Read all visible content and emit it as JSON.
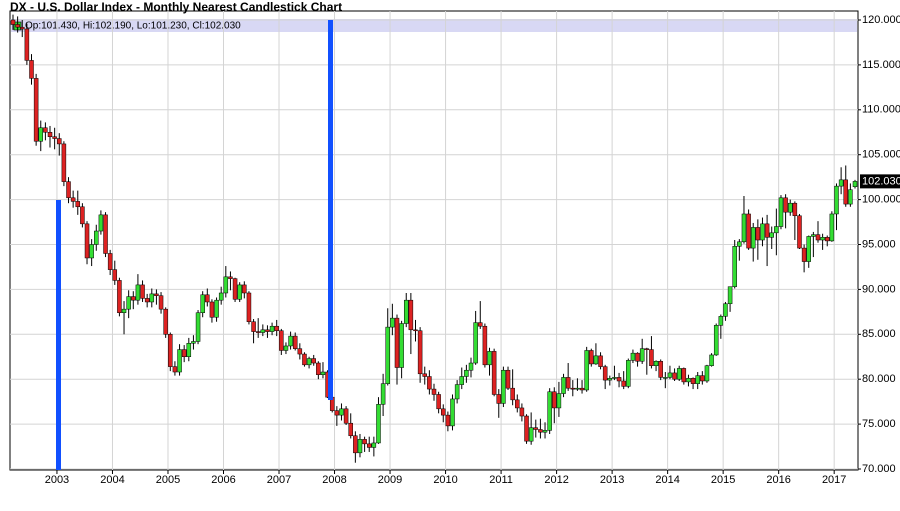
{
  "chart_data": {
    "type": "candlestick",
    "title": "DX - U.S. Dollar Index - Monthly Nearest Candlestick Chart",
    "info": "Op:101.430, Hi:102.190, Lo:101.230, Cl:102.030",
    "last_price_label": "102.030",
    "up_color": "#33dd33",
    "down_color": "#dd2222",
    "grid": true,
    "categories": [
      null,
      null,
      null,
      null,
      null,
      null,
      null,
      null,
      null,
      null,
      null,
      null,
      "2003",
      null,
      null,
      null,
      null,
      null,
      null,
      null,
      null,
      null,
      null,
      null,
      "2004",
      null,
      null,
      null,
      null,
      null,
      null,
      null,
      null,
      null,
      null,
      null,
      "2005",
      null,
      null,
      null,
      null,
      null,
      null,
      null,
      null,
      null,
      null,
      null,
      "2006",
      null,
      null,
      null,
      null,
      null,
      null,
      null,
      null,
      null,
      null,
      null,
      "2007",
      null,
      null,
      null,
      null,
      null,
      null,
      null,
      null,
      null,
      null,
      null,
      "2008",
      null,
      null,
      null,
      null,
      null,
      null,
      null,
      null,
      null,
      null,
      null,
      "2009",
      null,
      null,
      null,
      null,
      null,
      null,
      null,
      null,
      null,
      null,
      null,
      "2010",
      null,
      null,
      null,
      null,
      null,
      null,
      null,
      null,
      null,
      null,
      null,
      "2011",
      null,
      null,
      null,
      null,
      null,
      null,
      null,
      null,
      null,
      null,
      null,
      "2012",
      null,
      null,
      null,
      null,
      null,
      null,
      null,
      null,
      null,
      null,
      null,
      "2013",
      null,
      null,
      null,
      null,
      null,
      null,
      null,
      null,
      null,
      null,
      null,
      "2014",
      null,
      null,
      null,
      null,
      null,
      null,
      null,
      null,
      null,
      null,
      null,
      "2015",
      null,
      null,
      null,
      null,
      null,
      null,
      null,
      null,
      null,
      null,
      null,
      "2016",
      null,
      null,
      null,
      null,
      null,
      null,
      null,
      null,
      null,
      null,
      null,
      "2017",
      null,
      null
    ],
    "open": [
      120.0,
      119.5,
      119.2,
      119.0,
      115.5,
      113.5,
      106.5,
      108.0,
      107.5,
      107.0,
      106.8,
      106.2,
      102.0,
      100.2,
      99.8,
      99.2,
      97.3,
      93.5,
      95.0,
      96.5,
      98.3,
      94.0,
      92.2,
      91.0,
      87.4,
      87.8,
      89.2,
      88.8,
      90.5,
      89.0,
      88.6,
      89.5,
      89.3,
      87.8,
      85.0,
      81.4,
      80.8,
      83.3,
      82.5,
      84.0,
      84.2,
      87.4,
      89.4,
      88.6,
      86.9,
      88.8,
      89.6,
      91.4,
      91.2,
      88.9,
      90.5,
      89.6,
      86.4,
      85.3,
      85.2,
      85.5,
      85.3,
      85.9,
      85.4,
      83.2,
      83.7,
      84.8,
      83.4,
      82.8,
      81.6,
      82.3,
      81.8,
      80.5,
      80.8,
      78.0,
      76.5,
      76.0,
      76.7,
      75.1,
      73.7,
      71.8,
      73.3,
      72.8,
      72.4,
      72.9,
      77.2,
      79.5,
      85.8,
      86.8,
      81.3,
      86.2,
      88.8,
      85.5,
      85.4,
      80.6,
      80.3,
      78.9,
      78.3,
      76.7,
      76.0,
      74.8,
      77.8,
      79.4,
      80.3,
      81.0,
      81.8,
      86.3,
      85.9,
      81.6,
      83.1,
      78.3,
      77.3,
      81.0,
      79.0,
      77.7,
      76.8,
      75.9,
      73.1,
      74.6,
      74.4,
      74.1,
      74.3,
      78.6,
      76.8,
      78.4,
      80.2,
      79.0,
      78.9,
      79.0,
      78.8,
      83.2,
      81.7,
      82.6,
      81.4,
      79.9,
      80.1,
      80.2,
      79.8,
      79.2,
      82.1,
      82.9,
      82.0,
      83.4,
      83.3,
      81.5,
      82.0,
      80.2,
      80.2,
      80.7,
      80.0,
      81.2,
      79.7,
      80.1,
      79.5,
      80.4,
      79.8,
      81.5,
      82.7,
      86.0,
      87.0,
      88.4,
      90.3,
      94.8,
      95.3,
      98.4,
      94.6,
      96.9,
      95.5,
      97.3,
      95.8,
      96.3,
      97.0,
      100.2,
      98.6,
      99.6,
      98.2,
      94.6,
      93.1,
      95.9,
      96.1,
      95.5,
      95.8,
      95.4,
      98.4,
      101.5,
      102.2,
      99.5,
      101.43
    ],
    "high": [
      120.6,
      120.4,
      120.0,
      119.6,
      116.2,
      114.0,
      108.8,
      108.6,
      108.2,
      108.0,
      107.4,
      106.5,
      102.5,
      101.0,
      101.0,
      99.6,
      97.6,
      95.6,
      97.2,
      98.8,
      98.6,
      94.4,
      93.2,
      91.3,
      88.7,
      89.9,
      89.8,
      91.7,
      91.0,
      89.5,
      90.1,
      90.0,
      89.7,
      88.0,
      85.2,
      82.0,
      83.9,
      83.8,
      84.6,
      84.9,
      87.7,
      89.8,
      90.1,
      88.9,
      89.1,
      90.3,
      92.6,
      92.0,
      91.3,
      90.8,
      90.9,
      89.8,
      86.7,
      86.8,
      86.1,
      86.0,
      86.3,
      86.6,
      85.6,
      84.1,
      85.3,
      85.2,
      84.0,
      83.0,
      82.5,
      82.7,
      82.0,
      81.9,
      81.0,
      78.2,
      77.0,
      77.3,
      77.0,
      76.2,
      74.2,
      73.9,
      73.6,
      73.6,
      73.6,
      78.0,
      80.6,
      87.9,
      88.4,
      87.2,
      86.5,
      89.6,
      89.6,
      86.6,
      85.8,
      81.4,
      81.0,
      79.5,
      78.6,
      77.2,
      76.4,
      78.3,
      79.9,
      81.3,
      81.6,
      82.4,
      87.6,
      88.7,
      86.2,
      83.5,
      83.4,
      78.9,
      81.4,
      81.4,
      81.1,
      78.3,
      77.3,
      76.1,
      76.3,
      75.5,
      75.6,
      75.2,
      79.0,
      79.1,
      79.7,
      80.6,
      81.8,
      79.9,
      80.1,
      79.9,
      83.6,
      83.4,
      84.0,
      83.0,
      81.6,
      80.4,
      81.5,
      80.7,
      80.9,
      82.3,
      83.3,
      83.0,
      84.5,
      83.5,
      84.8,
      82.1,
      82.2,
      80.8,
      81.5,
      81.2,
      81.5,
      81.3,
      80.5,
      80.2,
      80.8,
      80.9,
      81.6,
      82.9,
      86.2,
      87.2,
      88.6,
      90.3,
      95.5,
      95.6,
      100.4,
      98.9,
      97.4,
      97.8,
      98.0,
      98.3,
      97.0,
      99.0,
      100.5,
      100.6,
      100.0,
      99.8,
      98.4,
      95.0,
      96.0,
      96.4,
      97.6,
      96.2,
      96.0,
      98.7,
      101.8,
      103.6,
      103.8,
      101.8,
      102.19
    ],
    "low": [
      118.9,
      118.6,
      118.1,
      115.0,
      112.8,
      106.0,
      105.4,
      106.6,
      105.8,
      105.6,
      104.9,
      101.5,
      99.6,
      99.1,
      98.3,
      96.9,
      92.8,
      92.6,
      94.3,
      96.1,
      93.6,
      91.6,
      90.5,
      87.0,
      85.0,
      86.8,
      87.8,
      88.3,
      88.6,
      88.0,
      88.0,
      88.3,
      87.3,
      84.6,
      80.9,
      80.4,
      80.4,
      81.9,
      82.0,
      83.3,
      83.9,
      86.9,
      88.1,
      86.3,
      86.4,
      88.3,
      89.1,
      89.9,
      88.6,
      88.6,
      89.0,
      86.1,
      84.0,
      84.6,
      84.8,
      84.6,
      84.9,
      84.8,
      82.7,
      82.8,
      83.3,
      83.2,
      82.2,
      81.4,
      81.2,
      81.5,
      80.0,
      80.1,
      77.9,
      76.3,
      74.8,
      75.4,
      74.9,
      73.4,
      70.7,
      71.3,
      71.9,
      71.9,
      71.4,
      72.8,
      75.9,
      79.3,
      84.9,
      79.4,
      80.1,
      85.8,
      82.8,
      84.2,
      79.6,
      79.4,
      78.3,
      77.6,
      76.2,
      75.2,
      74.2,
      74.3,
      77.3,
      78.9,
      79.6,
      80.2,
      81.6,
      85.6,
      81.3,
      80.4,
      78.1,
      75.7,
      76.9,
      78.8,
      77.1,
      76.3,
      75.3,
      72.8,
      72.7,
      73.5,
      73.4,
      73.4,
      73.9,
      75.1,
      75.8,
      78.0,
      78.7,
      78.1,
      78.7,
      78.4,
      78.6,
      81.4,
      81.6,
      81.1,
      78.9,
      79.3,
      79.9,
      79.1,
      78.9,
      79.0,
      81.8,
      81.4,
      81.7,
      80.5,
      81.2,
      80.9,
      79.9,
      79.0,
      80.0,
      79.8,
      79.8,
      79.4,
      79.2,
      78.9,
      78.9,
      79.4,
      79.6,
      81.4,
      82.6,
      84.5,
      86.5,
      87.5,
      90.1,
      93.2,
      95.1,
      94.4,
      93.1,
      93.3,
      94.8,
      92.6,
      94.5,
      93.8,
      96.7,
      96.8,
      98.2,
      95.5,
      94.5,
      91.9,
      92.4,
      93.6,
      95.2,
      94.4,
      94.8,
      95.3,
      96.6,
      100.6,
      99.2,
      99.2,
      101.23
    ],
    "close": [
      119.5,
      119.2,
      119.0,
      115.5,
      113.5,
      106.5,
      108.0,
      107.5,
      107.0,
      106.8,
      106.2,
      102.0,
      100.2,
      99.8,
      99.2,
      97.3,
      93.5,
      95.0,
      96.5,
      98.3,
      94.0,
      92.2,
      91.0,
      87.4,
      87.8,
      89.2,
      88.8,
      90.5,
      89.0,
      88.6,
      89.5,
      89.3,
      87.8,
      85.0,
      81.4,
      80.8,
      83.3,
      82.5,
      84.0,
      84.2,
      87.4,
      89.4,
      88.6,
      86.9,
      88.8,
      89.6,
      91.4,
      91.2,
      88.9,
      90.5,
      89.6,
      86.4,
      85.3,
      85.2,
      85.5,
      85.3,
      85.9,
      85.4,
      83.2,
      83.7,
      84.8,
      83.4,
      82.8,
      81.6,
      82.3,
      81.8,
      80.5,
      80.8,
      78.0,
      76.5,
      76.0,
      76.7,
      75.1,
      73.7,
      71.8,
      73.3,
      72.8,
      72.4,
      72.9,
      77.2,
      79.5,
      85.8,
      86.8,
      81.3,
      86.2,
      88.8,
      85.5,
      85.4,
      80.6,
      80.3,
      78.9,
      78.3,
      76.7,
      76.0,
      74.8,
      77.8,
      79.4,
      80.3,
      81.0,
      81.8,
      86.3,
      85.9,
      81.6,
      83.1,
      78.3,
      77.3,
      81.0,
      79.0,
      77.7,
      76.8,
      75.9,
      73.1,
      74.6,
      74.4,
      74.1,
      74.3,
      78.6,
      76.8,
      78.4,
      80.2,
      79.0,
      78.9,
      79.0,
      78.8,
      83.2,
      81.7,
      82.6,
      81.4,
      79.9,
      80.1,
      80.2,
      79.8,
      79.2,
      82.1,
      82.9,
      82.0,
      83.4,
      83.3,
      81.5,
      82.0,
      80.2,
      80.2,
      80.7,
      80.0,
      81.2,
      79.7,
      80.1,
      79.5,
      80.4,
      79.8,
      81.5,
      82.7,
      86.0,
      87.0,
      88.4,
      90.3,
      94.8,
      95.3,
      98.4,
      94.6,
      96.9,
      95.5,
      97.3,
      95.8,
      96.3,
      97.0,
      100.2,
      98.6,
      99.6,
      98.2,
      94.6,
      93.1,
      95.9,
      96.1,
      95.5,
      95.8,
      95.4,
      98.4,
      101.5,
      102.2,
      99.5,
      101.1,
      102.03
    ],
    "ylim": [
      70,
      120
    ],
    "yticks": [
      {
        "value": 70,
        "label": "70.000"
      },
      {
        "value": 75,
        "label": "75.000"
      },
      {
        "value": 80,
        "label": "80.000"
      },
      {
        "value": 85,
        "label": "85.000"
      },
      {
        "value": 90,
        "label": "90.000"
      },
      {
        "value": 95,
        "label": "95.000"
      },
      {
        "value": 100,
        "label": "100.000"
      },
      {
        "value": 105,
        "label": "105.000"
      },
      {
        "value": 110,
        "label": "110.000"
      },
      {
        "value": 115,
        "label": "115.000"
      },
      {
        "value": 120,
        "label": "120.000"
      }
    ]
  }
}
